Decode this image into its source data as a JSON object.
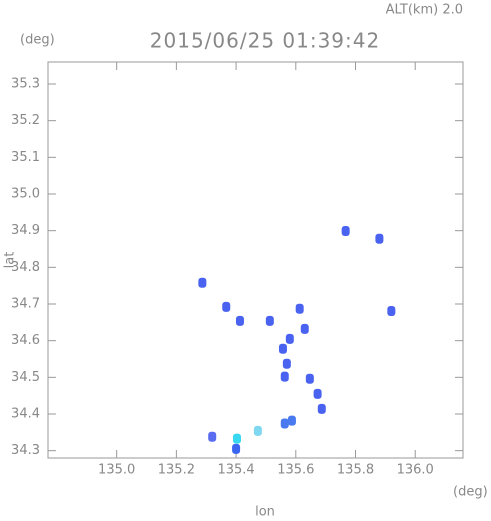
{
  "chart_data": {
    "type": "scatter",
    "title": "2015/06/25 01:39:42",
    "subtitle": "ALT(km) 2.0",
    "y_unit": "(deg)",
    "x_unit": "(deg)",
    "ylabel": "lat",
    "xlabel": "lon",
    "x": [
      135.403,
      135.4,
      135.473,
      135.563,
      135.587,
      135.32,
      135.557,
      135.57,
      135.563,
      135.58,
      135.513,
      135.613,
      135.63,
      135.647,
      135.673,
      135.687,
      135.413,
      135.367,
      135.287,
      135.92,
      135.88,
      135.767
    ],
    "y": [
      34.333,
      34.305,
      34.354,
      34.374,
      34.382,
      34.338,
      34.578,
      34.537,
      34.502,
      34.605,
      34.654,
      34.687,
      34.632,
      34.496,
      34.455,
      34.414,
      34.654,
      34.692,
      34.758,
      34.681,
      34.878,
      34.899
    ],
    "colors": [
      "#38d8f0",
      "#3a66f0",
      "#7fd8f0",
      "#4a7af0",
      "#4a7af0",
      "#5a6cf0",
      "#4a62f0",
      "#4a62f0",
      "#4a62f0",
      "#4a62f0",
      "#4a62f0",
      "#4a62f0",
      "#4a62f0",
      "#4a62f0",
      "#4a62f0",
      "#4a62f0",
      "#4a62f0",
      "#4a62f0",
      "#4a62f0",
      "#4a62f0",
      "#4a62f0",
      "#4a62f0"
    ],
    "xlim": [
      134.77,
      136.16
    ],
    "ylim": [
      34.28,
      35.36
    ],
    "xticks": [
      {
        "value": 135,
        "label": "135.0"
      },
      135.2,
      135.4,
      135.6,
      135.8,
      {
        "value": 136,
        "label": "136.0"
      }
    ],
    "yticks": [
      34.3,
      34.4,
      34.5,
      34.6,
      34.7,
      34.8,
      34.9,
      {
        "value": 35,
        "label": "35.0"
      },
      35.1,
      35.2,
      35.3
    ],
    "grid": false
  }
}
